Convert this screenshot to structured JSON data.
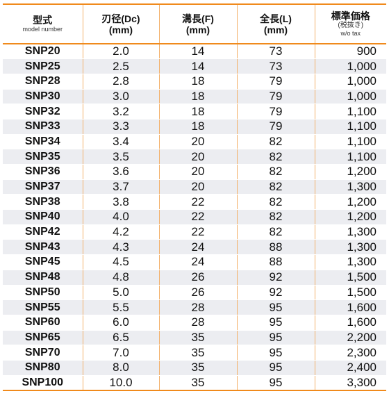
{
  "header": {
    "model": {
      "title": "型式",
      "sub": "model number"
    },
    "diameter": {
      "title": "刃径(Dc)",
      "unit": "(mm)"
    },
    "flute": {
      "title": "溝長(F)",
      "unit": "(mm)"
    },
    "length": {
      "title": "全長(L)",
      "unit": "(mm)"
    },
    "price": {
      "title": "標準価格",
      "sub1": "(税抜き)",
      "sub2": "w/o tax"
    }
  },
  "rows": [
    {
      "model": "SNP20",
      "dc": "2.0",
      "f": "14",
      "l": "73",
      "price": "900"
    },
    {
      "model": "SNP25",
      "dc": "2.5",
      "f": "14",
      "l": "73",
      "price": "1,000"
    },
    {
      "model": "SNP28",
      "dc": "2.8",
      "f": "18",
      "l": "79",
      "price": "1,000"
    },
    {
      "model": "SNP30",
      "dc": "3.0",
      "f": "18",
      "l": "79",
      "price": "1,000"
    },
    {
      "model": "SNP32",
      "dc": "3.2",
      "f": "18",
      "l": "79",
      "price": "1,100"
    },
    {
      "model": "SNP33",
      "dc": "3.3",
      "f": "18",
      "l": "79",
      "price": "1,100"
    },
    {
      "model": "SNP34",
      "dc": "3.4",
      "f": "20",
      "l": "82",
      "price": "1,100"
    },
    {
      "model": "SNP35",
      "dc": "3.5",
      "f": "20",
      "l": "82",
      "price": "1,100"
    },
    {
      "model": "SNP36",
      "dc": "3.6",
      "f": "20",
      "l": "82",
      "price": "1,200"
    },
    {
      "model": "SNP37",
      "dc": "3.7",
      "f": "20",
      "l": "82",
      "price": "1,300"
    },
    {
      "model": "SNP38",
      "dc": "3.8",
      "f": "22",
      "l": "82",
      "price": "1,200"
    },
    {
      "model": "SNP40",
      "dc": "4.0",
      "f": "22",
      "l": "82",
      "price": "1,200"
    },
    {
      "model": "SNP42",
      "dc": "4.2",
      "f": "22",
      "l": "82",
      "price": "1,300"
    },
    {
      "model": "SNP43",
      "dc": "4.3",
      "f": "24",
      "l": "88",
      "price": "1,300"
    },
    {
      "model": "SNP45",
      "dc": "4.5",
      "f": "24",
      "l": "88",
      "price": "1,300"
    },
    {
      "model": "SNP48",
      "dc": "4.8",
      "f": "26",
      "l": "92",
      "price": "1,500"
    },
    {
      "model": "SNP50",
      "dc": "5.0",
      "f": "26",
      "l": "92",
      "price": "1,500"
    },
    {
      "model": "SNP55",
      "dc": "5.5",
      "f": "28",
      "l": "95",
      "price": "1,600"
    },
    {
      "model": "SNP60",
      "dc": "6.0",
      "f": "28",
      "l": "95",
      "price": "1,600"
    },
    {
      "model": "SNP65",
      "dc": "6.5",
      "f": "35",
      "l": "95",
      "price": "2,200"
    },
    {
      "model": "SNP70",
      "dc": "7.0",
      "f": "35",
      "l": "95",
      "price": "2,300"
    },
    {
      "model": "SNP80",
      "dc": "8.0",
      "f": "35",
      "l": "95",
      "price": "2,400"
    },
    {
      "model": "SNP100",
      "dc": "10.0",
      "f": "35",
      "l": "95",
      "price": "3,300"
    }
  ],
  "colors": {
    "accent_border": "#f08a1c",
    "column_divider": "#f3b06a",
    "stripe": "#ecedf1"
  }
}
